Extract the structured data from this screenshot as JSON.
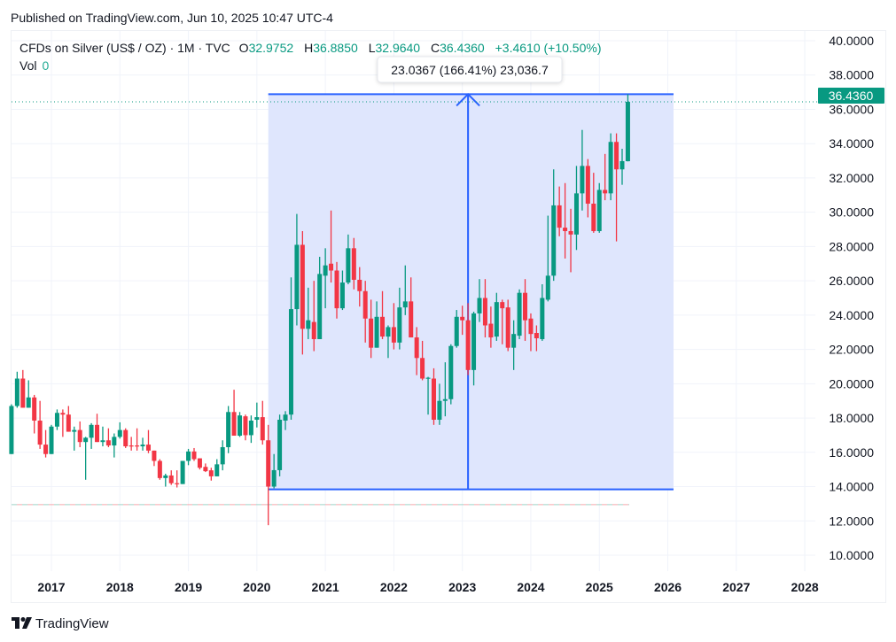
{
  "header": {
    "published": "Published on TradingView.com, Jun 10, 2025 10:47 UTC-4"
  },
  "legend": {
    "symbol": "CFDs on Silver (US$ / OZ) · 1M · TVC",
    "o_label": "O",
    "o_value": "32.9752",
    "h_label": "H",
    "h_value": "36.8850",
    "l_label": "L",
    "l_value": "32.9640",
    "c_label": "C",
    "c_value": "36.4360",
    "change": "+3.4610 (+10.50%)",
    "vol_label": "Vol",
    "vol_value": "0"
  },
  "measure": {
    "label": "23.0367 (166.41%) 23,036.7",
    "from_price": 13.8433,
    "to_price": 36.88,
    "from_date": "2020-03",
    "to_date": "2026-02",
    "arrow_date": "2023-02"
  },
  "price_label": "36.4360",
  "footer": {
    "brand": "TradingView"
  },
  "colors": {
    "up": "#089981",
    "down": "#f23645",
    "measure": "#2962ff",
    "measure_fill": "#dfe6fd"
  },
  "chart_data": {
    "type": "candlestick",
    "interval": "1M",
    "ylim": [
      10,
      40
    ],
    "grid": true,
    "y_ticks": [
      "40.0000",
      "38.0000",
      "36.0000",
      "34.0000",
      "32.0000",
      "30.0000",
      "28.0000",
      "26.0000",
      "24.0000",
      "22.0000",
      "20.0000",
      "18.0000",
      "16.0000",
      "14.0000",
      "12.0000",
      "10.0000"
    ],
    "x_ticks": [
      "2017",
      "2018",
      "2019",
      "2020",
      "2021",
      "2022",
      "2023",
      "2024",
      "2025",
      "2026",
      "2027",
      "2028"
    ],
    "dashed_level": 12.95,
    "candles": [
      [
        "2016-06",
        15.9,
        18.8,
        15.9,
        18.7
      ],
      [
        "2016-07",
        18.7,
        20.7,
        18.6,
        20.3
      ],
      [
        "2016-08",
        20.3,
        20.8,
        18.6,
        18.6
      ],
      [
        "2016-09",
        18.6,
        20.2,
        18.6,
        19.2
      ],
      [
        "2016-10",
        19.2,
        19.35,
        17.1,
        17.85
      ],
      [
        "2016-11",
        17.85,
        19.0,
        16.2,
        16.45
      ],
      [
        "2016-12",
        16.45,
        17.3,
        15.7,
        15.9
      ],
      [
        "2017-01",
        15.9,
        17.6,
        15.9,
        17.5
      ],
      [
        "2017-02",
        17.5,
        18.5,
        17.3,
        18.3
      ],
      [
        "2017-03",
        18.3,
        18.5,
        16.9,
        18.2
      ],
      [
        "2017-04",
        18.2,
        18.7,
        17.2,
        17.2
      ],
      [
        "2017-05",
        17.2,
        17.5,
        16.1,
        17.3
      ],
      [
        "2017-06",
        17.3,
        17.8,
        16.3,
        16.6
      ],
      [
        "2017-07",
        16.6,
        16.9,
        14.4,
        16.85
      ],
      [
        "2017-08",
        16.85,
        17.7,
        16.2,
        17.6
      ],
      [
        "2017-09",
        17.6,
        18.25,
        16.6,
        16.6
      ],
      [
        "2017-10",
        16.6,
        17.5,
        16.35,
        16.7
      ],
      [
        "2017-11",
        16.7,
        17.4,
        16.3,
        16.4
      ],
      [
        "2017-12",
        16.4,
        17.1,
        15.7,
        16.9
      ],
      [
        "2018-01",
        16.9,
        17.75,
        16.8,
        17.3
      ],
      [
        "2018-02",
        17.3,
        17.4,
        16.25,
        16.35
      ],
      [
        "2018-03",
        16.4,
        16.9,
        16.1,
        16.35
      ],
      [
        "2018-04",
        16.4,
        17.4,
        16.1,
        16.35
      ],
      [
        "2018-05",
        16.35,
        16.85,
        16.1,
        16.45
      ],
      [
        "2018-06",
        16.45,
        17.3,
        15.95,
        16.1
      ],
      [
        "2018-07",
        16.1,
        16.1,
        15.2,
        15.5
      ],
      [
        "2018-08",
        15.5,
        15.6,
        14.4,
        14.5
      ],
      [
        "2018-09",
        14.5,
        14.75,
        14.0,
        14.65
      ],
      [
        "2018-10",
        14.65,
        14.95,
        14.1,
        14.2
      ],
      [
        "2018-11",
        14.2,
        14.95,
        13.95,
        14.15
      ],
      [
        "2018-12",
        14.15,
        15.5,
        14.15,
        15.5
      ],
      [
        "2019-01",
        15.5,
        16.2,
        15.25,
        16.05
      ],
      [
        "2019-02",
        16.05,
        16.25,
        15.5,
        15.6
      ],
      [
        "2019-03",
        15.65,
        15.65,
        15.0,
        15.1
      ],
      [
        "2019-04",
        15.15,
        15.35,
        14.85,
        14.9
      ],
      [
        "2019-05",
        14.95,
        15.1,
        14.35,
        14.6
      ],
      [
        "2019-06",
        14.6,
        15.6,
        14.6,
        15.3
      ],
      [
        "2019-07",
        15.3,
        16.7,
        14.95,
        16.3
      ],
      [
        "2019-08",
        16.3,
        18.7,
        15.95,
        18.35
      ],
      [
        "2019-09",
        18.35,
        19.65,
        16.97,
        16.97
      ],
      [
        "2019-10",
        16.97,
        18.35,
        16.9,
        18.15
      ],
      [
        "2019-11",
        18.1,
        18.2,
        16.7,
        17.0
      ],
      [
        "2019-12",
        17.0,
        18.15,
        16.55,
        17.85
      ],
      [
        "2020-01",
        17.9,
        18.9,
        17.45,
        18.05
      ],
      [
        "2020-02",
        18.05,
        19.0,
        16.45,
        16.7
      ],
      [
        "2020-03",
        16.7,
        17.6,
        11.75,
        14.0
      ],
      [
        "2020-04",
        14.0,
        15.9,
        13.9,
        14.96
      ],
      [
        "2020-05",
        14.96,
        18.2,
        14.6,
        17.9
      ],
      [
        "2020-06",
        17.85,
        18.4,
        17.3,
        18.2
      ],
      [
        "2020-07",
        18.2,
        26.2,
        17.9,
        24.35
      ],
      [
        "2020-08",
        24.35,
        29.9,
        23.4,
        28.1
      ],
      [
        "2020-09",
        28.1,
        28.9,
        21.7,
        23.2
      ],
      [
        "2020-10",
        23.2,
        25.6,
        22.6,
        23.7
      ],
      [
        "2020-11",
        23.6,
        26.0,
        21.9,
        22.6
      ],
      [
        "2020-12",
        22.6,
        27.4,
        22.6,
        26.4
      ],
      [
        "2021-01",
        26.3,
        27.9,
        24.4,
        26.9
      ],
      [
        "2021-02",
        27.0,
        30.1,
        25.9,
        26.6
      ],
      [
        "2021-03",
        26.6,
        27.1,
        23.8,
        24.4
      ],
      [
        "2021-04",
        24.4,
        26.6,
        24.3,
        25.9
      ],
      [
        "2021-05",
        25.9,
        28.7,
        25.8,
        27.9
      ],
      [
        "2021-06",
        27.9,
        28.5,
        25.5,
        26.06
      ],
      [
        "2021-07",
        26.06,
        26.8,
        24.5,
        25.4
      ],
      [
        "2021-08",
        25.4,
        26.0,
        22.4,
        23.8
      ],
      [
        "2021-09",
        23.8,
        24.9,
        21.5,
        22.1
      ],
      [
        "2021-10",
        22.1,
        24.8,
        22.1,
        23.9
      ],
      [
        "2021-11",
        23.9,
        25.4,
        22.6,
        22.75
      ],
      [
        "2021-12",
        22.75,
        23.4,
        21.5,
        23.3
      ],
      [
        "2022-01",
        23.3,
        24.7,
        22.0,
        22.4
      ],
      [
        "2022-02",
        22.4,
        25.6,
        22.0,
        24.45
      ],
      [
        "2022-03",
        24.45,
        26.9,
        24.0,
        24.8
      ],
      [
        "2022-04",
        24.8,
        26.2,
        22.7,
        22.7
      ],
      [
        "2022-05",
        22.7,
        23.3,
        20.5,
        21.5
      ],
      [
        "2022-06",
        21.5,
        22.5,
        20.2,
        20.3
      ],
      [
        "2022-07",
        20.3,
        20.4,
        18.2,
        20.35
      ],
      [
        "2022-08",
        20.3,
        20.9,
        17.6,
        17.9
      ],
      [
        "2022-09",
        17.9,
        20.0,
        17.6,
        19.0
      ],
      [
        "2022-10",
        19.0,
        21.25,
        18.1,
        19.1
      ],
      [
        "2022-11",
        19.1,
        22.3,
        18.8,
        22.2
      ],
      [
        "2022-12",
        22.2,
        24.3,
        22.1,
        23.9
      ],
      [
        "2023-01",
        23.9,
        24.55,
        22.85,
        23.7
      ],
      [
        "2023-02",
        23.7,
        24.7,
        20.5,
        20.8
      ],
      [
        "2023-03",
        20.8,
        24.2,
        19.9,
        24.1
      ],
      [
        "2023-04",
        24.1,
        26.1,
        23.6,
        25.0
      ],
      [
        "2023-05",
        25.0,
        26.1,
        22.7,
        23.4
      ],
      [
        "2023-06",
        23.5,
        24.5,
        22.1,
        22.7
      ],
      [
        "2023-07",
        22.75,
        25.3,
        22.5,
        24.76
      ],
      [
        "2023-08",
        24.76,
        24.9,
        22.3,
        24.4
      ],
      [
        "2023-09",
        24.45,
        24.9,
        21.9,
        22.1
      ],
      [
        "2023-10",
        22.1,
        23.7,
        20.8,
        22.9
      ],
      [
        "2023-11",
        22.8,
        25.5,
        22.6,
        25.3
      ],
      [
        "2023-12",
        25.3,
        26.1,
        22.5,
        23.7
      ],
      [
        "2024-01",
        23.8,
        24.1,
        21.9,
        22.9
      ],
      [
        "2024-02",
        22.96,
        23.4,
        21.9,
        22.65
      ],
      [
        "2024-03",
        22.6,
        25.8,
        22.5,
        25.0
      ],
      [
        "2024-04",
        24.9,
        29.8,
        24.8,
        26.3
      ],
      [
        "2024-05",
        26.3,
        32.5,
        26.0,
        30.4
      ],
      [
        "2024-06",
        30.4,
        31.5,
        28.6,
        29.1
      ],
      [
        "2024-07",
        29.1,
        31.7,
        27.3,
        28.9
      ],
      [
        "2024-08",
        28.9,
        30.2,
        26.5,
        28.7
      ],
      [
        "2024-09",
        28.7,
        32.7,
        27.8,
        31.1
      ],
      [
        "2024-10",
        31.1,
        34.8,
        30.1,
        32.7
      ],
      [
        "2024-11",
        32.7,
        33.1,
        29.7,
        30.5
      ],
      [
        "2024-12",
        30.5,
        32.3,
        28.8,
        28.9
      ],
      [
        "2025-01",
        28.9,
        31.7,
        28.8,
        31.3
      ],
      [
        "2025-02",
        31.3,
        33.4,
        30.7,
        31.1
      ],
      [
        "2025-03",
        31.1,
        34.6,
        30.7,
        34.1
      ],
      [
        "2025-04",
        34.1,
        34.6,
        28.3,
        32.5
      ],
      [
        "2025-05",
        32.5,
        33.7,
        31.6,
        32.98
      ],
      [
        "2025-06",
        32.9752,
        36.885,
        32.964,
        36.436
      ]
    ]
  }
}
